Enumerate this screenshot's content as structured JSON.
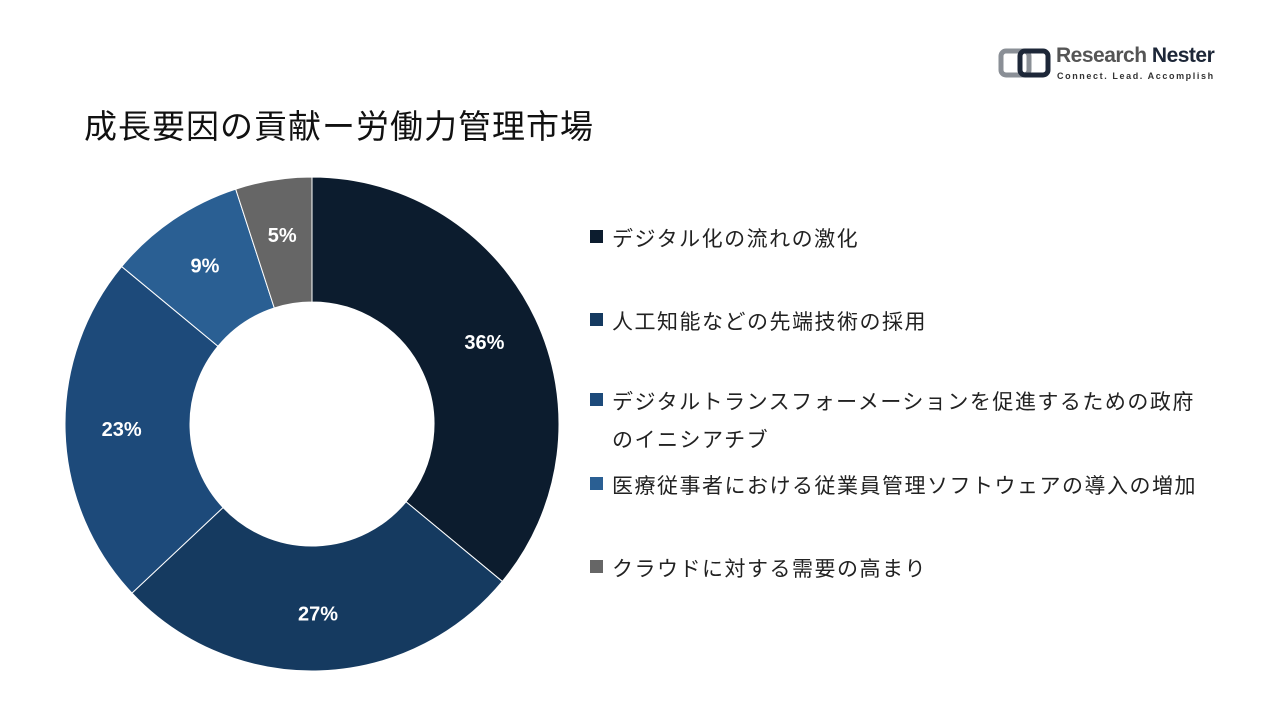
{
  "header": {
    "title": "成長要因の貢献ー労働力管理市場"
  },
  "logo": {
    "name_part1": "Research",
    "name_part2": "Nester",
    "tagline": "Connect. Lead. Accomplish"
  },
  "chart_data": {
    "type": "pie",
    "title": "成長要因の貢献ー労働力管理市場",
    "donut": true,
    "categories": [
      "デジタル化の流れの激化",
      "人工知能などの先端技術の採用",
      "デジタルトランスフォーメーションを促進するための政府のイニシアチブ",
      "医療従事者における従業員管理ソフトウェアの導入の増加",
      "クラウドに対する需要の高まり"
    ],
    "values": [
      36,
      27,
      23,
      9,
      5
    ],
    "labels": [
      "36%",
      "27%",
      "23%",
      "9%",
      "5%"
    ],
    "colors": [
      "#0c1c2e",
      "#153a60",
      "#1d4a7a",
      "#2a5f93",
      "#666666"
    ],
    "legend_position": "right"
  }
}
